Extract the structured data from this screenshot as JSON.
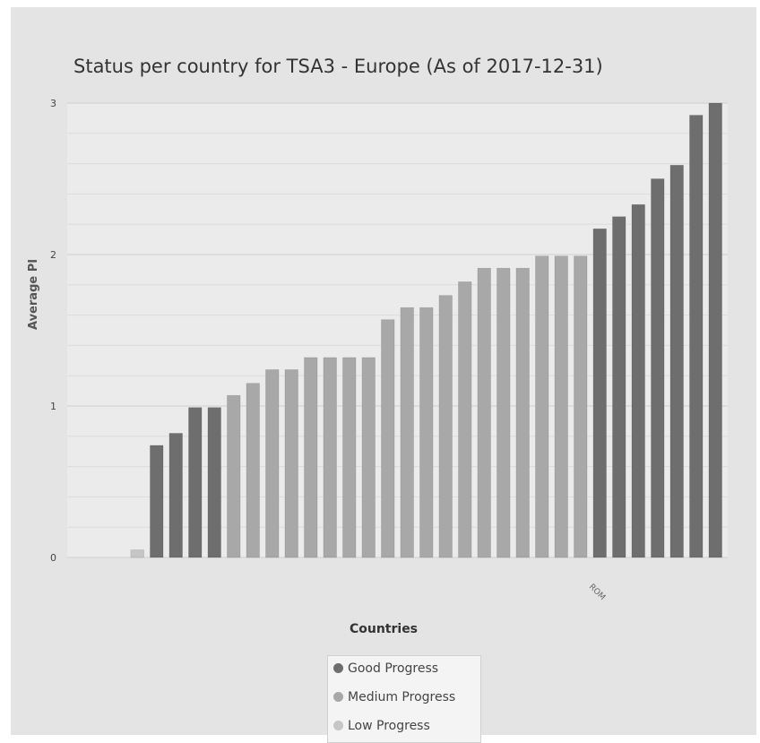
{
  "chart_data": {
    "type": "bar",
    "title": "Status per country for TSA3 - Europe (As of 2017-12-31)",
    "xlabel": "Countries",
    "ylabel": "Average PI",
    "ylim": [
      0,
      3
    ],
    "yticks": [
      "0",
      "1",
      "2",
      "3"
    ],
    "grid": true,
    "legend_position": "bottom",
    "legend": [
      {
        "name": "Good Progress",
        "color": "#6e6e6e"
      },
      {
        "name": "Medium Progress",
        "color": "#a8a8a8"
      },
      {
        "name": "Low Progress",
        "color": "#c6c6c6"
      }
    ],
    "visible_category_labels": [
      "ROM"
    ],
    "bars": [
      {
        "value": 0.0,
        "status": "Low Progress"
      },
      {
        "value": 0.0,
        "status": "Low Progress"
      },
      {
        "value": 0.0,
        "status": "Low Progress"
      },
      {
        "value": 0.05,
        "status": "Low Progress"
      },
      {
        "value": 0.74,
        "status": "Good Progress"
      },
      {
        "value": 0.82,
        "status": "Good Progress"
      },
      {
        "value": 0.99,
        "status": "Good Progress"
      },
      {
        "value": 0.99,
        "status": "Good Progress"
      },
      {
        "value": 1.07,
        "status": "Medium Progress"
      },
      {
        "value": 1.15,
        "status": "Medium Progress"
      },
      {
        "value": 1.24,
        "status": "Medium Progress"
      },
      {
        "value": 1.24,
        "status": "Medium Progress"
      },
      {
        "value": 1.32,
        "status": "Medium Progress"
      },
      {
        "value": 1.32,
        "status": "Medium Progress"
      },
      {
        "value": 1.32,
        "status": "Medium Progress"
      },
      {
        "value": 1.32,
        "status": "Medium Progress"
      },
      {
        "value": 1.57,
        "status": "Medium Progress"
      },
      {
        "value": 1.65,
        "status": "Medium Progress"
      },
      {
        "value": 1.65,
        "status": "Medium Progress"
      },
      {
        "value": 1.73,
        "status": "Medium Progress"
      },
      {
        "value": 1.82,
        "status": "Medium Progress"
      },
      {
        "value": 1.91,
        "status": "Medium Progress"
      },
      {
        "value": 1.91,
        "status": "Medium Progress"
      },
      {
        "value": 1.91,
        "status": "Medium Progress"
      },
      {
        "value": 1.99,
        "status": "Medium Progress"
      },
      {
        "value": 1.99,
        "status": "Medium Progress"
      },
      {
        "value": 1.99,
        "status": "Medium Progress"
      },
      {
        "value": 2.17,
        "status": "Good Progress"
      },
      {
        "value": 2.25,
        "status": "Good Progress"
      },
      {
        "value": 2.33,
        "status": "Good Progress"
      },
      {
        "value": 2.5,
        "status": "Good Progress"
      },
      {
        "value": 2.59,
        "status": "Good Progress"
      },
      {
        "value": 2.92,
        "status": "Good Progress"
      },
      {
        "value": 3.0,
        "status": "Good Progress"
      }
    ]
  }
}
